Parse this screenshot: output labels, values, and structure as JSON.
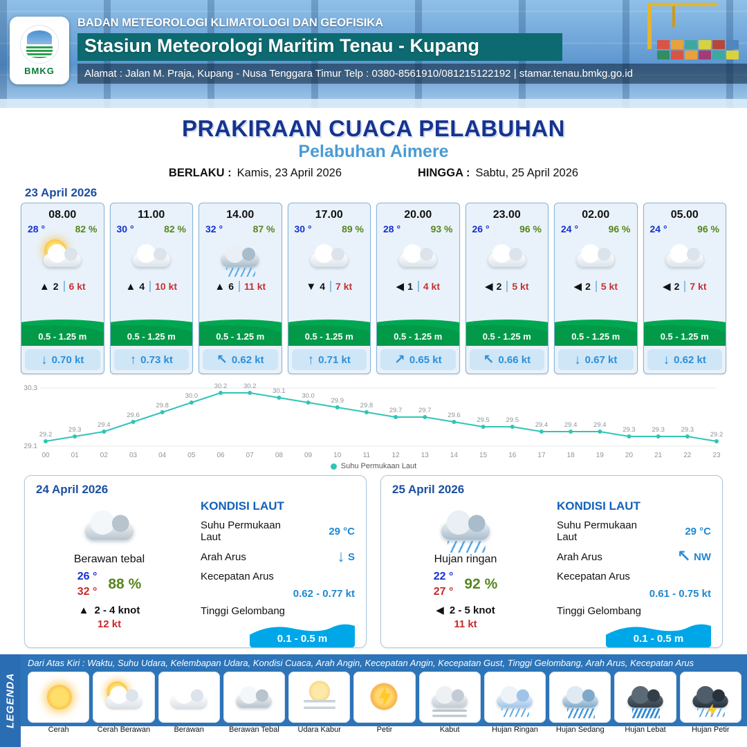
{
  "header": {
    "logo": "BMKG",
    "agency": "BADAN METEOROLOGI KLIMATOLOGI DAN GEOFISIKA",
    "station": "Stasiun Meteorologi Maritim Tenau - Kupang",
    "address": "Alamat : Jalan M. Praja, Kupang - Nusa Tenggara Timur Telp : 0380-8561910/081215122192  | stamar.tenau.bmkg.go.id"
  },
  "title": {
    "main": "PRAKIRAAN CUACA PELABUHAN",
    "port": "Pelabuhan Aimere",
    "berlaku_label": "BERLAKU :",
    "berlaku_value": "Kamis, 23 April 2026",
    "hingga_label": "HINGGA :",
    "hingga_value": "Sabtu, 25 April 2026"
  },
  "forecast_date": "23 April 2026",
  "forecast_cards": [
    {
      "time": "08.00",
      "temp": "28 °",
      "humidity": "82 %",
      "icon": "sun-cloud",
      "wind_arrow": "▲",
      "wind_speed": "2",
      "gust": "6 kt",
      "wave_height": "0.5 - 1.25 m",
      "current_arrow": "↓",
      "current_speed": "0.70 kt"
    },
    {
      "time": "11.00",
      "temp": "30 °",
      "humidity": "82 %",
      "icon": "cloud",
      "wind_arrow": "▲",
      "wind_speed": "4",
      "gust": "10 kt",
      "wave_height": "0.5 - 1.25 m",
      "current_arrow": "↑",
      "current_speed": "0.73 kt"
    },
    {
      "time": "14.00",
      "temp": "32 °",
      "humidity": "87 %",
      "icon": "rain",
      "wind_arrow": "▲",
      "wind_speed": "6",
      "gust": "11 kt",
      "wave_height": "0.5 - 1.25 m",
      "current_arrow": "↖",
      "current_speed": "0.62 kt"
    },
    {
      "time": "17.00",
      "temp": "30 °",
      "humidity": "89 %",
      "icon": "cloud",
      "wind_arrow": "▼",
      "wind_speed": "4",
      "gust": "7 kt",
      "wave_height": "0.5 - 1.25 m",
      "current_arrow": "↑",
      "current_speed": "0.71 kt"
    },
    {
      "time": "20.00",
      "temp": "28 °",
      "humidity": "93 %",
      "icon": "cloud",
      "wind_arrow": "◀",
      "wind_speed": "1",
      "gust": "4 kt",
      "wave_height": "0.5 - 1.25 m",
      "current_arrow": "↗",
      "current_speed": "0.65 kt"
    },
    {
      "time": "23.00",
      "temp": "26 °",
      "humidity": "96 %",
      "icon": "cloud",
      "wind_arrow": "◀",
      "wind_speed": "2",
      "gust": "5 kt",
      "wave_height": "0.5 - 1.25 m",
      "current_arrow": "↖",
      "current_speed": "0.66 kt"
    },
    {
      "time": "02.00",
      "temp": "24 °",
      "humidity": "96 %",
      "icon": "cloud",
      "wind_arrow": "◀",
      "wind_speed": "2",
      "gust": "5 kt",
      "wave_height": "0.5 - 1.25 m",
      "current_arrow": "↓",
      "current_speed": "0.67 kt"
    },
    {
      "time": "05.00",
      "temp": "24 °",
      "humidity": "96 %",
      "icon": "cloud",
      "wind_arrow": "◀",
      "wind_speed": "2",
      "gust": "7 kt",
      "wave_height": "0.5 - 1.25 m",
      "current_arrow": "↓",
      "current_speed": "0.62 kt"
    }
  ],
  "chart_data": {
    "type": "line",
    "series_name": "Suhu Permukaan Laut",
    "x": [
      "00",
      "01",
      "02",
      "03",
      "04",
      "05",
      "06",
      "07",
      "08",
      "09",
      "10",
      "11",
      "12",
      "13",
      "14",
      "15",
      "16",
      "17",
      "18",
      "19",
      "20",
      "21",
      "22",
      "23"
    ],
    "values": [
      29.2,
      29.3,
      29.4,
      29.6,
      29.8,
      30.0,
      30.2,
      30.2,
      30.1,
      30.0,
      29.9,
      29.8,
      29.7,
      29.7,
      29.6,
      29.5,
      29.5,
      29.4,
      29.4,
      29.4,
      29.3,
      29.3,
      29.3,
      29.2
    ],
    "ylim": [
      29.1,
      30.3
    ],
    "xlabel": "",
    "ylabel": "",
    "grid": true,
    "legend_position": "bottom",
    "line_color": "#2fc5b5"
  },
  "day_cards": [
    {
      "date": "24 April 2026",
      "icon": "thick-cloud",
      "condition": "Berawan tebal",
      "temp_min": "26 °",
      "temp_max": "32 °",
      "humidity": "88 %",
      "wind_arrow": "▲",
      "wind_range": "2  - 4 knot",
      "gust": "12 kt",
      "sea": {
        "heading": "KONDISI LAUT",
        "sst_label": "Suhu Permukaan Laut",
        "sst_value": "29 °C",
        "current_dir_label": "Arah Arus",
        "current_arrow": "↓",
        "current_dir": "S",
        "current_speed_label": "Kecepatan Arus",
        "current_speed": "0.62 - 0.77 kt",
        "wave_label": "Tinggi Gelombang",
        "wave_value": "0.1 - 0.5 m"
      }
    },
    {
      "date": "25 April 2026",
      "icon": "rain",
      "condition": "Hujan ringan",
      "temp_min": "22 °",
      "temp_max": "27 °",
      "humidity": "92 %",
      "wind_arrow": "◀",
      "wind_range": "2  - 5 knot",
      "gust": "11 kt",
      "sea": {
        "heading": "KONDISI LAUT",
        "sst_label": "Suhu Permukaan Laut",
        "sst_value": "29 °C",
        "current_dir_label": "Arah Arus",
        "current_arrow": "↖",
        "current_dir": "NW",
        "current_speed_label": "Kecepatan Arus",
        "current_speed": "0.61 - 0.75 kt",
        "wave_label": "Tinggi Gelombang",
        "wave_value": "0.1 - 0.5 m"
      }
    }
  ],
  "legend": {
    "title": "LEGENDA",
    "note": "Dari Atas Kiri : Waktu, Suhu Udara, Kelembapan Udara, Kondisi Cuaca, Arah Angin, Kecepatan Angin, Kecepatan Gust, Tinggi Gelombang, Arah Arus, Kecepatan Arus",
    "items": [
      {
        "label": "Cerah",
        "icon": "sun"
      },
      {
        "label": "Cerah Berawan",
        "icon": "sun-cloud"
      },
      {
        "label": "Berawan",
        "icon": "cloud"
      },
      {
        "label": "Berawan Tebal",
        "icon": "thick-cloud"
      },
      {
        "label": "Udara Kabur",
        "icon": "haze"
      },
      {
        "label": "Petir",
        "icon": "thunder"
      },
      {
        "label": "Kabut",
        "icon": "fog"
      },
      {
        "label": "Hujan Ringan",
        "icon": "light-rain"
      },
      {
        "label": "Hujan Sedang",
        "icon": "mod-rain"
      },
      {
        "label": "Hujan Lebat",
        "icon": "heavy-rain"
      },
      {
        "label": "Hujan Petir",
        "icon": "thunder-rain"
      }
    ]
  }
}
